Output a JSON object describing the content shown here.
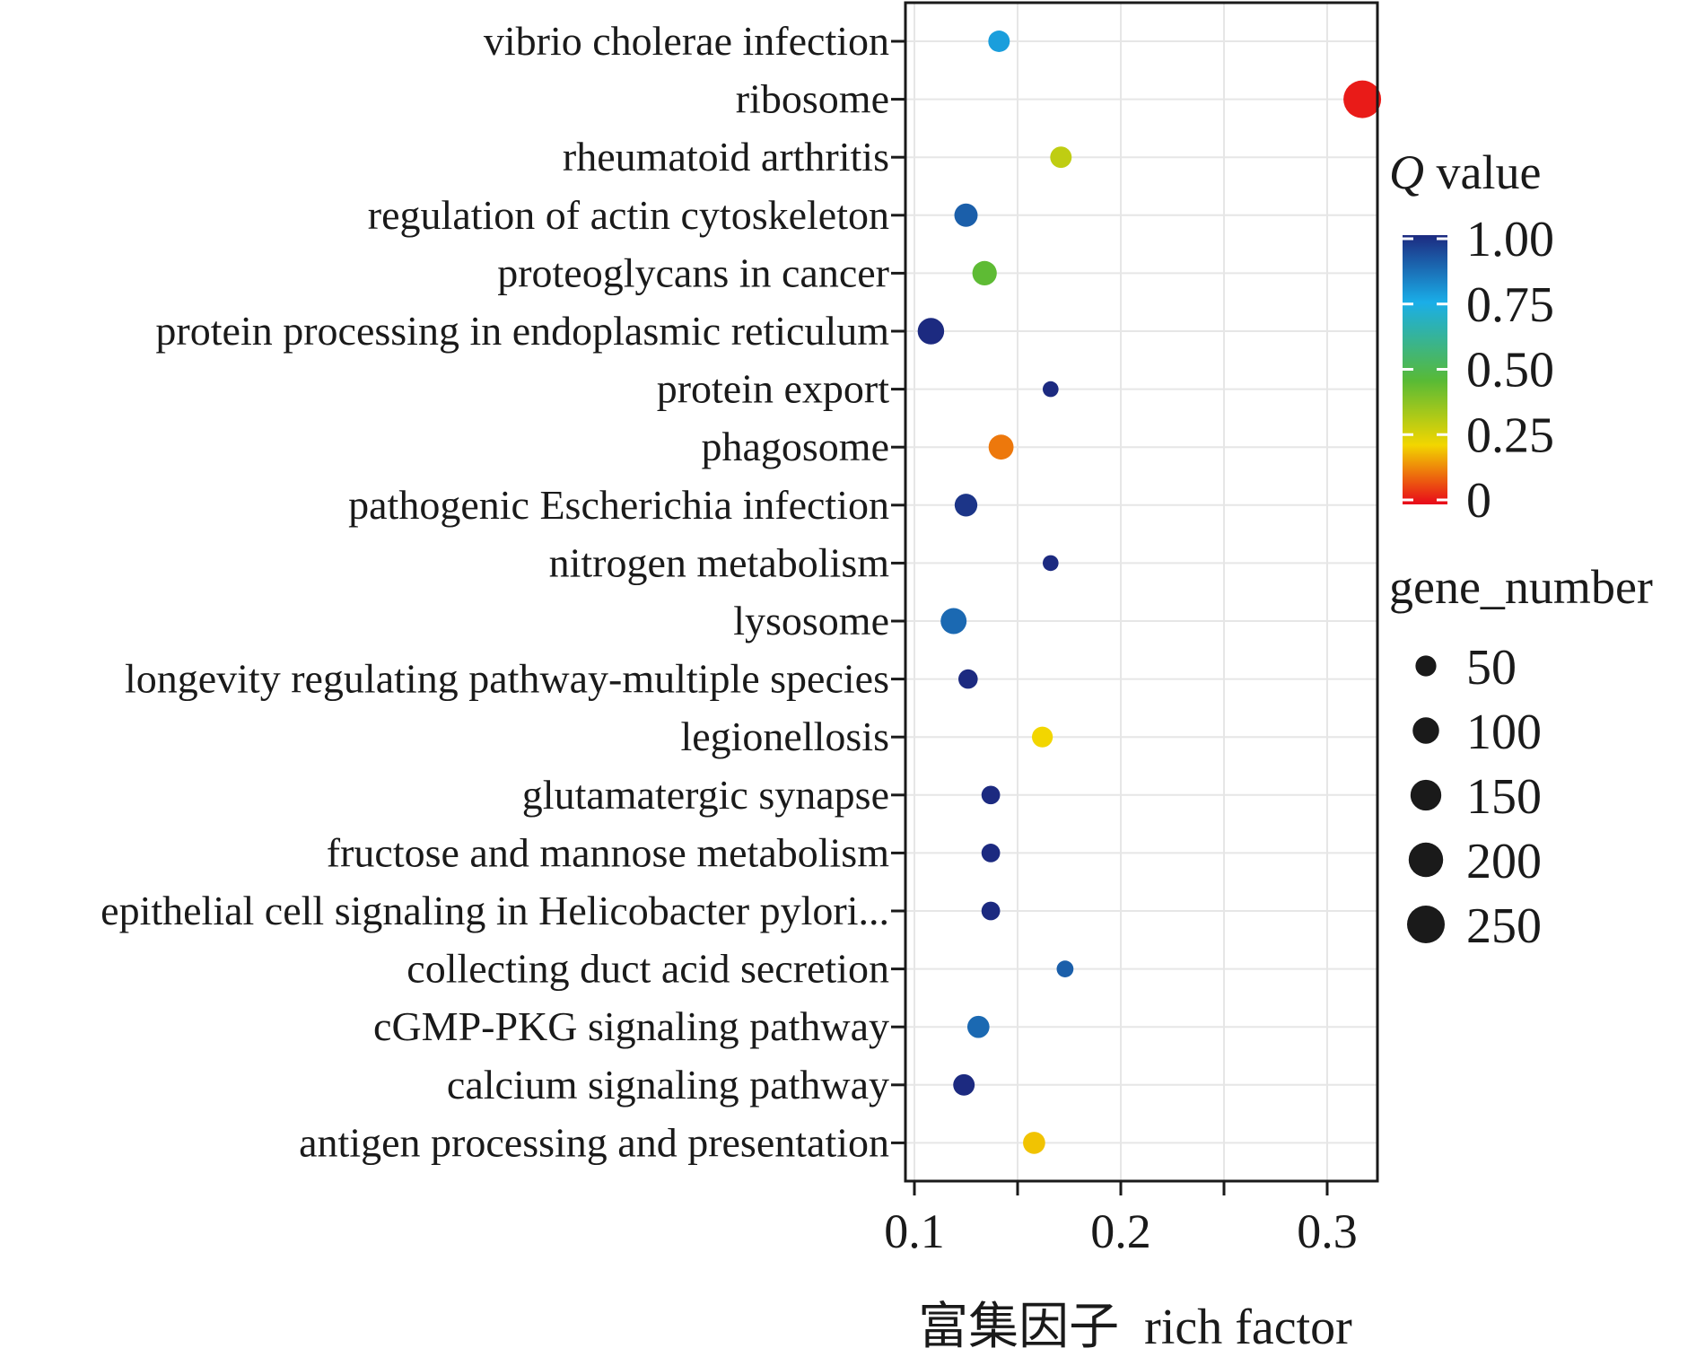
{
  "chart_data": {
    "type": "scatter",
    "xlabel_cn": "富集因子",
    "xlabel": "rich factor",
    "ylabel": "",
    "xlim": [
      0.1,
      0.33
    ],
    "xticks": [
      0.1,
      0.2,
      0.3
    ],
    "xtick_labels": [
      "0.1",
      "0.2",
      "0.3"
    ],
    "grid": true,
    "categories": [
      "vibrio cholerae infection",
      "ribosome",
      "rheumatoid arthritis",
      "regulation of actin cytoskeleton",
      "proteoglycans in cancer",
      "protein processing in endoplasmic reticulum",
      "protein export",
      "phagosome",
      "pathogenic Escherichia infection",
      "nitrogen metabolism",
      "lysosome",
      "longevity regulating pathway-multiple species",
      "legionellosis",
      "glutamatergic synapse",
      "fructose and mannose metabolism",
      "epithelial cell signaling in Helicobacter pylori...",
      "collecting duct acid secretion",
      "cGMP-PKG signaling pathway",
      "calcium signaling pathway",
      "antigen processing and presentation"
    ],
    "points": [
      {
        "category": "vibrio cholerae infection",
        "rich_factor": 0.141,
        "q_value": 0.78,
        "gene_number": 55
      },
      {
        "category": "ribosome",
        "rich_factor": 0.317,
        "q_value": 0.02,
        "gene_number": 250
      },
      {
        "category": "rheumatoid arthritis",
        "rich_factor": 0.171,
        "q_value": 0.3,
        "gene_number": 55
      },
      {
        "category": "regulation of actin cytoskeleton",
        "rich_factor": 0.125,
        "q_value": 0.9,
        "gene_number": 70
      },
      {
        "category": "proteoglycans in cancer",
        "rich_factor": 0.134,
        "q_value": 0.45,
        "gene_number": 80
      },
      {
        "category": "protein processing in endoplasmic reticulum",
        "rich_factor": 0.108,
        "q_value": 1.0,
        "gene_number": 100
      },
      {
        "category": "protein export",
        "rich_factor": 0.166,
        "q_value": 1.0,
        "gene_number": 20
      },
      {
        "category": "phagosome",
        "rich_factor": 0.142,
        "q_value": 0.12,
        "gene_number": 85
      },
      {
        "category": "pathogenic Escherichia infection",
        "rich_factor": 0.125,
        "q_value": 0.98,
        "gene_number": 65
      },
      {
        "category": "nitrogen metabolism",
        "rich_factor": 0.166,
        "q_value": 1.0,
        "gene_number": 20
      },
      {
        "category": "lysosome",
        "rich_factor": 0.119,
        "q_value": 0.88,
        "gene_number": 95
      },
      {
        "category": "longevity regulating pathway-multiple species",
        "rich_factor": 0.126,
        "q_value": 1.0,
        "gene_number": 40
      },
      {
        "category": "legionellosis",
        "rich_factor": 0.162,
        "q_value": 0.22,
        "gene_number": 50
      },
      {
        "category": "glutamatergic synapse",
        "rich_factor": 0.137,
        "q_value": 1.0,
        "gene_number": 35
      },
      {
        "category": "fructose and mannose metabolism",
        "rich_factor": 0.137,
        "q_value": 1.0,
        "gene_number": 35
      },
      {
        "category": "epithelial cell signaling in Helicobacter pylori...",
        "rich_factor": 0.137,
        "q_value": 1.0,
        "gene_number": 35
      },
      {
        "category": "collecting duct acid secretion",
        "rich_factor": 0.173,
        "q_value": 0.9,
        "gene_number": 25
      },
      {
        "category": "cGMP-PKG signaling pathway",
        "rich_factor": 0.131,
        "q_value": 0.88,
        "gene_number": 60
      },
      {
        "category": "calcium signaling pathway",
        "rich_factor": 0.124,
        "q_value": 1.0,
        "gene_number": 55
      },
      {
        "category": "antigen processing and presentation",
        "rich_factor": 0.158,
        "q_value": 0.2,
        "gene_number": 60
      }
    ],
    "color_legend": {
      "title_italic": "Q",
      "title_rest": " value",
      "ticks": [
        1.0,
        0.75,
        0.5,
        0.25,
        0
      ],
      "tick_labels": [
        "1.00",
        "0.75",
        "0.50",
        "0.25",
        "0"
      ],
      "colors": [
        "#e8081a",
        "#f2d600",
        "#58ba36",
        "#1aaee8",
        "#1c2a80"
      ]
    },
    "size_legend": {
      "title": "gene_number",
      "values": [
        50,
        100,
        150,
        200,
        250
      ],
      "labels": [
        "50",
        "100",
        "150",
        "200",
        "250"
      ]
    }
  }
}
